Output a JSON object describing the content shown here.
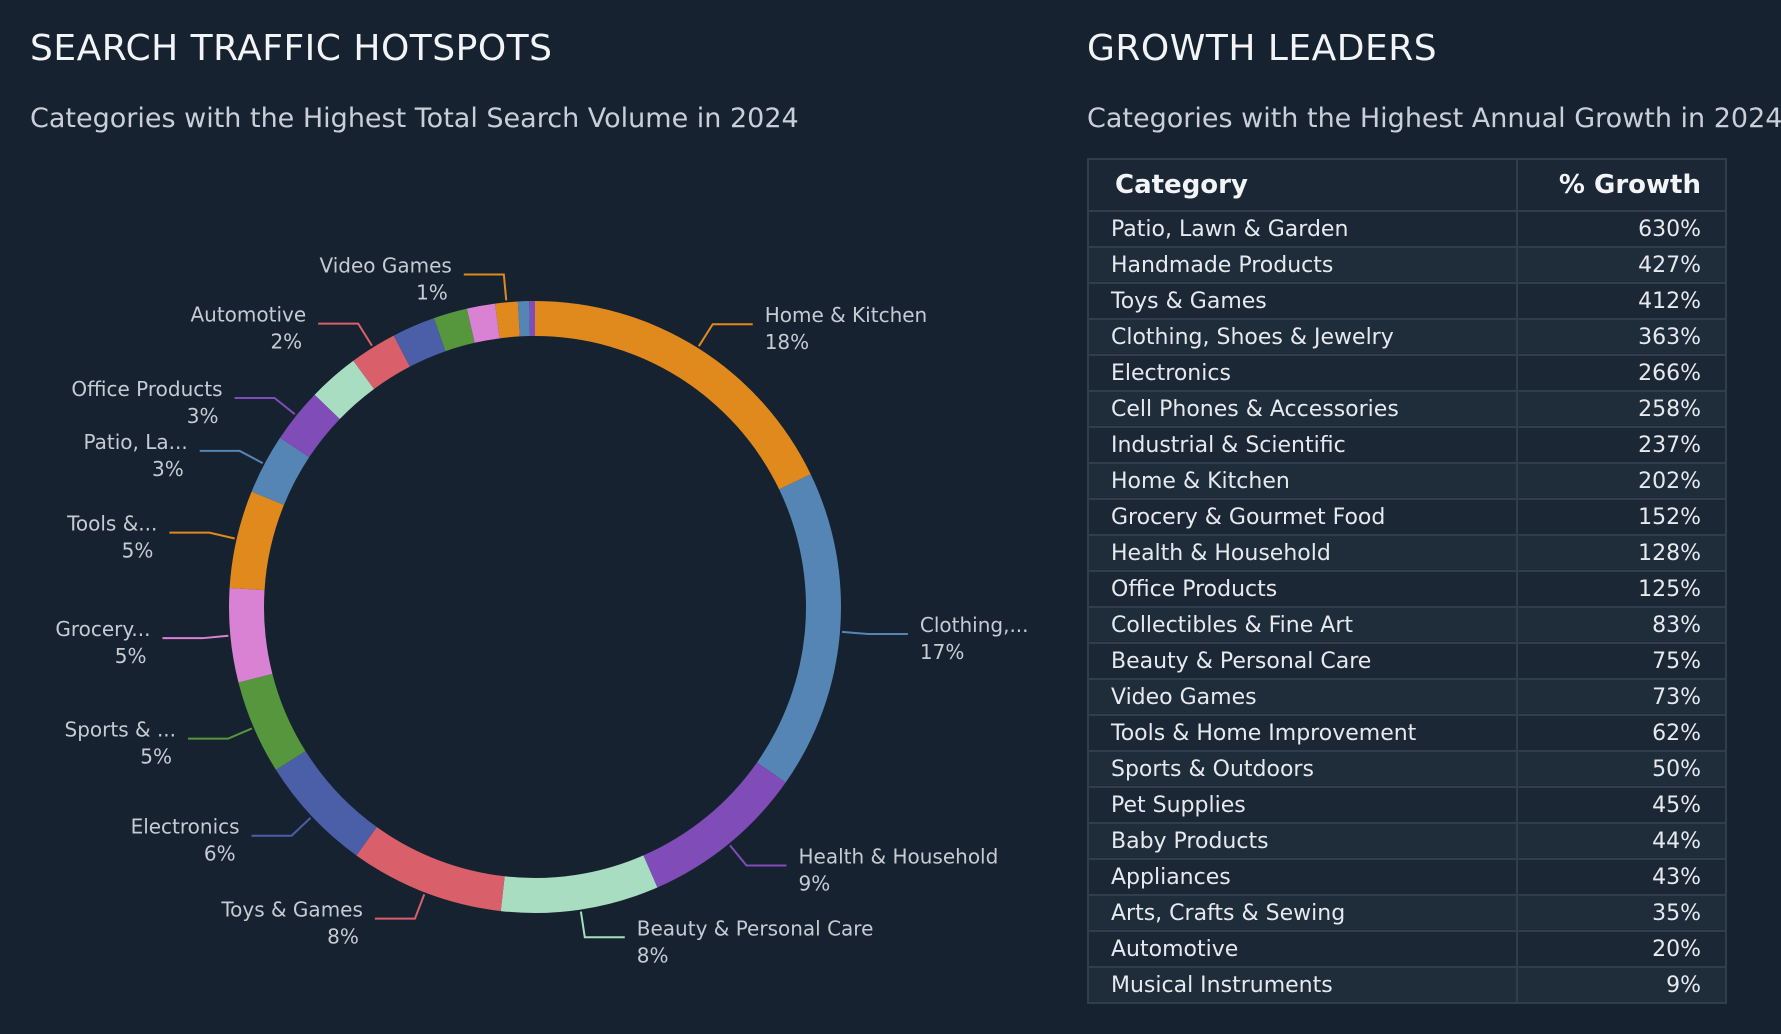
{
  "left_panel": {
    "title": "SEARCH TRAFFIC HOTSPOTS",
    "subtitle": "Categories with the Highest Total Search Volume in 2024"
  },
  "right_panel": {
    "title": "GROWTH LEADERS",
    "subtitle": "Categories with the Highest Annual Growth in 2024"
  },
  "chart_data": {
    "type": "pie",
    "donut": true,
    "start": "top",
    "direction": "clockwise",
    "slices": [
      {
        "label": "Home & Kitchen",
        "pct_label": "18%",
        "value": 18.0,
        "color": "#e08a1e",
        "labeled": true
      },
      {
        "label": "Clothing,...",
        "pct_label": "17%",
        "value": 17.0,
        "color": "#5585b5",
        "labeled": true
      },
      {
        "label": "Health & Household",
        "pct_label": "9%",
        "value": 8.8,
        "color": "#7f4cb8",
        "labeled": true
      },
      {
        "label": "Beauty & Personal Care",
        "pct_label": "8%",
        "value": 8.4,
        "color": "#a8ddc1",
        "labeled": true
      },
      {
        "label": "Toys & Games",
        "pct_label": "8%",
        "value": 8.2,
        "color": "#d9606a",
        "labeled": true
      },
      {
        "label": "Electronics",
        "pct_label": "6%",
        "value": 6.2,
        "color": "#4b5ea8",
        "labeled": true
      },
      {
        "label": "Sports & ...",
        "pct_label": "5%",
        "value": 5.0,
        "color": "#56963d",
        "labeled": true
      },
      {
        "label": "Grocery...",
        "pct_label": "5%",
        "value": 5.0,
        "color": "#d982d4",
        "labeled": true
      },
      {
        "label": "Tools &...",
        "pct_label": "5%",
        "value": 5.2,
        "color": "#e08a1e",
        "labeled": true
      },
      {
        "label": "Patio, La...",
        "pct_label": "3%",
        "value": 3.2,
        "color": "#5585b5",
        "labeled": true
      },
      {
        "label": "Office Products",
        "pct_label": "3%",
        "value": 2.9,
        "color": "#7f4cb8",
        "labeled": true
      },
      {
        "label": "",
        "pct_label": "",
        "value": 2.7,
        "color": "#a8ddc1",
        "labeled": false
      },
      {
        "label": "Automotive",
        "pct_label": "2%",
        "value": 2.5,
        "color": "#d9606a",
        "labeled": true
      },
      {
        "label": "",
        "pct_label": "",
        "value": 2.3,
        "color": "#4b5ea8",
        "labeled": false
      },
      {
        "label": "",
        "pct_label": "",
        "value": 1.8,
        "color": "#56963d",
        "labeled": false
      },
      {
        "label": "",
        "pct_label": "",
        "value": 1.5,
        "color": "#d982d4",
        "labeled": false
      },
      {
        "label": "Video Games",
        "pct_label": "1%",
        "value": 1.2,
        "color": "#e08a1e",
        "labeled": true
      },
      {
        "label": "",
        "pct_label": "",
        "value": 0.6,
        "color": "#5585b5",
        "labeled": false
      },
      {
        "label": "",
        "pct_label": "",
        "value": 0.3,
        "color": "#7f4cb8",
        "labeled": false
      }
    ]
  },
  "table": {
    "headers": {
      "category": "Category",
      "growth": "% Growth"
    },
    "rows": [
      {
        "category": "Patio, Lawn & Garden",
        "growth": "630%"
      },
      {
        "category": "Handmade Products",
        "growth": "427%"
      },
      {
        "category": "Toys & Games",
        "growth": "412%"
      },
      {
        "category": "Clothing, Shoes & Jewelry",
        "growth": "363%"
      },
      {
        "category": "Electronics",
        "growth": "266%"
      },
      {
        "category": "Cell Phones & Accessories",
        "growth": "258%"
      },
      {
        "category": "Industrial & Scientific",
        "growth": "237%"
      },
      {
        "category": "Home & Kitchen",
        "growth": "202%"
      },
      {
        "category": "Grocery & Gourmet Food",
        "growth": "152%"
      },
      {
        "category": "Health & Household",
        "growth": "128%"
      },
      {
        "category": "Office Products",
        "growth": "125%"
      },
      {
        "category": "Collectibles & Fine Art",
        "growth": "83%"
      },
      {
        "category": "Beauty & Personal Care",
        "growth": "75%"
      },
      {
        "category": "Video Games",
        "growth": "73%"
      },
      {
        "category": "Tools & Home Improvement",
        "growth": "62%"
      },
      {
        "category": "Sports & Outdoors",
        "growth": "50%"
      },
      {
        "category": "Pet Supplies",
        "growth": "45%"
      },
      {
        "category": "Baby Products",
        "growth": "44%"
      },
      {
        "category": "Appliances",
        "growth": "43%"
      },
      {
        "category": "Arts, Crafts & Sewing",
        "growth": "35%"
      },
      {
        "category": "Automotive",
        "growth": "20%"
      },
      {
        "category": "Musical Instruments",
        "growth": "9%"
      }
    ]
  }
}
